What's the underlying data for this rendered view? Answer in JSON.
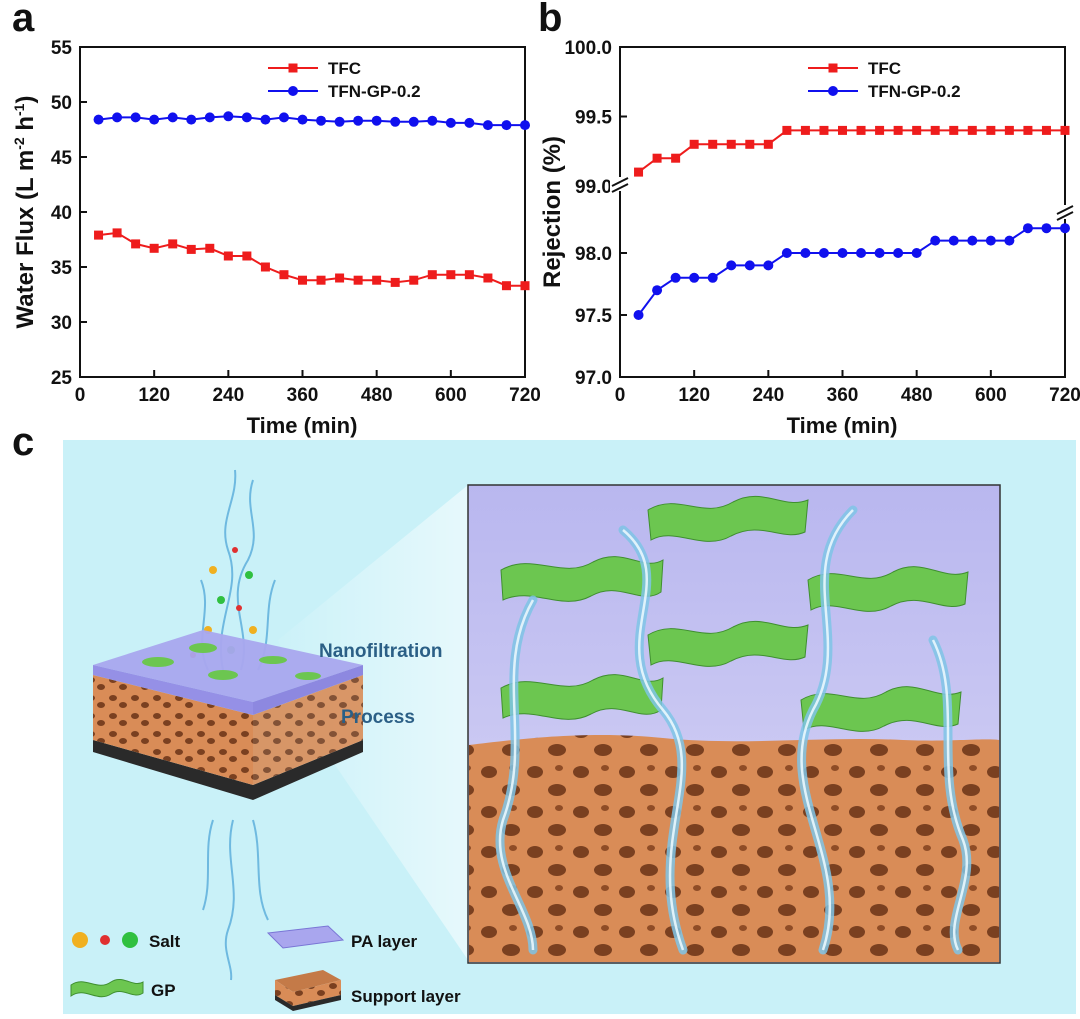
{
  "panels": {
    "a": "a",
    "b": "b",
    "c": "c"
  },
  "colors": {
    "tfc": "#ee1c1c",
    "tfn": "#1010ee",
    "panel_c_bg": "#c9f1f8",
    "support": "#d98c57",
    "pa_layer": "#a9a6ee",
    "gp": "#6cc650",
    "water": "#7fc4e6"
  },
  "chart_data": [
    {
      "type": "line",
      "panel": "a",
      "xlabel": "Time (min)",
      "ylabel": "Water Flux (L m-2 h-1)",
      "ylabel_parts": {
        "main": "Water Flux (L m",
        "sup1": "-2",
        "mid": " h",
        "sup2": "-1",
        "end": ")"
      },
      "xlim": [
        0,
        720
      ],
      "ylim": [
        25,
        55
      ],
      "xticks": [
        0,
        120,
        240,
        360,
        480,
        600,
        720
      ],
      "yticks": [
        25,
        30,
        35,
        40,
        45,
        50,
        55
      ],
      "grid": false,
      "legend": "top-right",
      "x": [
        30,
        60,
        90,
        120,
        150,
        180,
        210,
        240,
        270,
        300,
        330,
        360,
        390,
        420,
        450,
        480,
        510,
        540,
        570,
        600,
        630,
        660,
        690,
        720
      ],
      "series": [
        {
          "name": "TFC",
          "marker": "square",
          "color": "#ee1c1c",
          "values": [
            37.9,
            38.1,
            37.1,
            36.7,
            37.1,
            36.6,
            36.7,
            36.0,
            36.0,
            35.0,
            34.3,
            33.8,
            33.8,
            34.0,
            33.8,
            33.8,
            33.6,
            33.8,
            34.3,
            34.3,
            34.3,
            34.0,
            33.3,
            33.3
          ]
        },
        {
          "name": "TFN-GP-0.2",
          "marker": "circle",
          "color": "#1010ee",
          "values": [
            48.4,
            48.6,
            48.6,
            48.4,
            48.6,
            48.4,
            48.6,
            48.7,
            48.6,
            48.4,
            48.6,
            48.4,
            48.3,
            48.2,
            48.3,
            48.3,
            48.2,
            48.2,
            48.3,
            48.1,
            48.1,
            47.9,
            47.9,
            47.9
          ]
        }
      ]
    },
    {
      "type": "line",
      "panel": "b",
      "xlabel": "Time (min)",
      "ylabel": "Rejection (%)",
      "xlim": [
        0,
        720
      ],
      "ylim": [
        97.0,
        100.0
      ],
      "broken_axis": {
        "lower": [
          97.0,
          98.25
        ],
        "upper": [
          98.9,
          100.0
        ]
      },
      "xticks": [
        0,
        120,
        240,
        360,
        480,
        600,
        720
      ],
      "yticks_lower": [
        "97.0",
        "97.5",
        "98.0"
      ],
      "yticks_upper": [
        "99.0",
        "99.5",
        "100.0"
      ],
      "grid": false,
      "legend": "top-right",
      "x": [
        30,
        60,
        90,
        120,
        150,
        180,
        210,
        240,
        270,
        300,
        330,
        360,
        390,
        420,
        450,
        480,
        510,
        540,
        570,
        600,
        630,
        660,
        690,
        720
      ],
      "series": [
        {
          "name": "TFC",
          "marker": "square",
          "color": "#ee1c1c",
          "values": [
            99.1,
            99.2,
            99.2,
            99.3,
            99.3,
            99.3,
            99.3,
            99.3,
            99.4,
            99.4,
            99.4,
            99.4,
            99.4,
            99.4,
            99.4,
            99.4,
            99.4,
            99.4,
            99.4,
            99.4,
            99.4,
            99.4,
            99.4,
            99.4
          ]
        },
        {
          "name": "TFN-GP-0.2",
          "marker": "circle",
          "color": "#1010ee",
          "values": [
            97.5,
            97.7,
            97.8,
            97.8,
            97.8,
            97.9,
            97.9,
            97.9,
            98.0,
            98.0,
            98.0,
            98.0,
            98.0,
            98.0,
            98.0,
            98.0,
            98.1,
            98.1,
            98.1,
            98.1,
            98.1,
            98.2,
            98.2,
            98.2
          ]
        }
      ]
    }
  ],
  "illustration": {
    "labels": {
      "nanofiltration": "Nanofiltration",
      "process": "Process"
    },
    "legend": {
      "salt": "Salt",
      "pa_layer": "PA layer",
      "gp": "GP",
      "support_layer": "Support layer"
    }
  }
}
